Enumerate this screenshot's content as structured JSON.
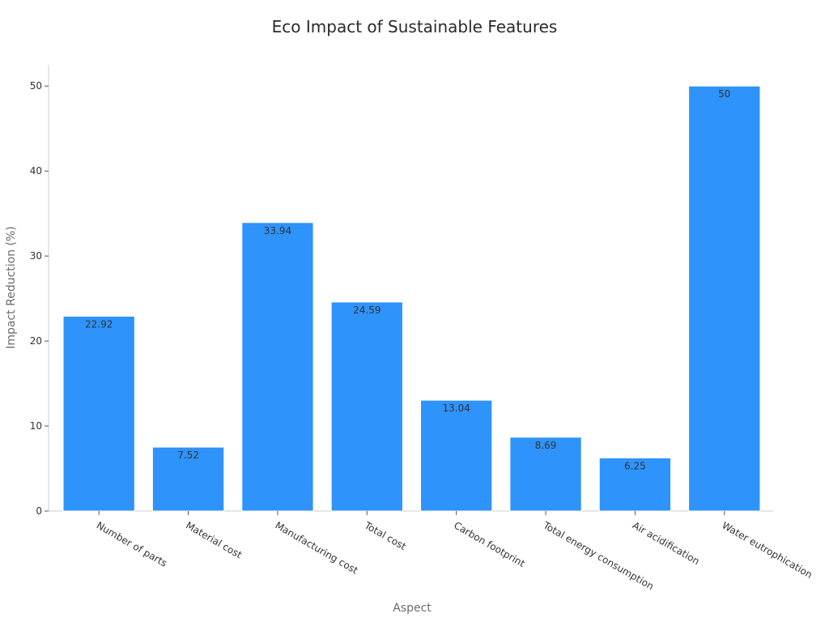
{
  "chart_data": {
    "type": "bar",
    "title": "Eco Impact of Sustainable Features",
    "xlabel": "Aspect",
    "ylabel": "Impact Reduction (%)",
    "categories": [
      "Number of parts",
      "Material cost",
      "Manufacturing cost",
      "Total cost",
      "Carbon footprint",
      "Total energy consumption",
      "Air acidification",
      "Water eutrophication"
    ],
    "values": [
      22.92,
      7.52,
      33.94,
      24.59,
      13.04,
      8.69,
      6.25,
      50
    ],
    "ylim": [
      0,
      52.5
    ],
    "yticks": [
      0,
      10,
      20,
      30,
      40,
      50
    ],
    "bar_color": "#2e93fa",
    "grid": false,
    "legend": "none"
  }
}
